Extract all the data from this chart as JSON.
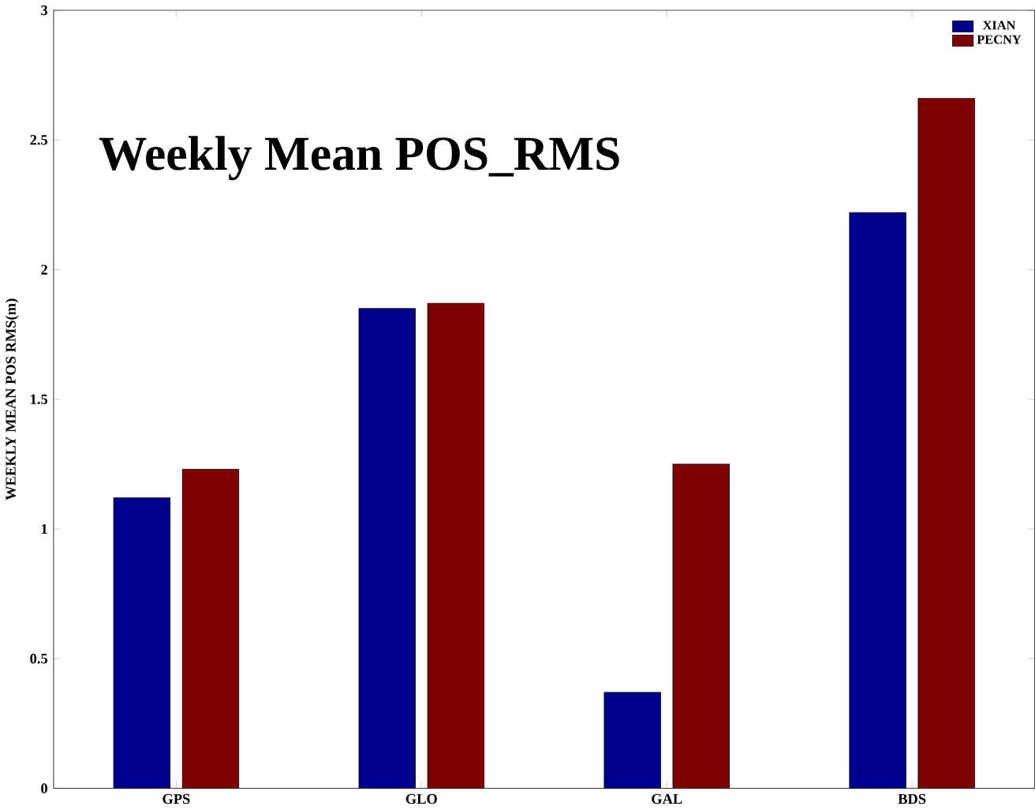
{
  "chart_data": {
    "type": "bar",
    "title": "Weekly Mean POS_RMS",
    "ylabel": "WEEKLY MEAN POS RMS(m)",
    "categories": [
      "GPS",
      "GLO",
      "GAL",
      "BDS"
    ],
    "series": [
      {
        "name": "XIAN",
        "color": "#00008f",
        "values": [
          1.12,
          1.85,
          0.37,
          2.22
        ]
      },
      {
        "name": "PECNY",
        "color": "#7f0000",
        "values": [
          1.23,
          1.87,
          1.25,
          2.66
        ]
      }
    ],
    "ylim": [
      0,
      3
    ],
    "yticks": [
      0,
      0.5,
      1,
      1.5,
      2,
      2.5,
      3
    ],
    "grid": false,
    "legend": "top right"
  }
}
